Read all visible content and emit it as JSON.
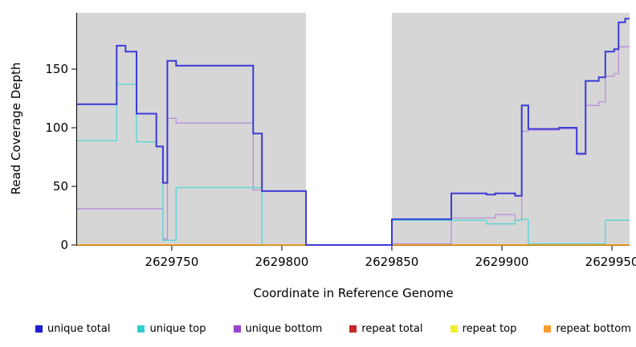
{
  "chart_data": {
    "type": "line",
    "title": "",
    "xlabel": "Coordinate in Reference Genome",
    "ylabel": "Read Coverage Depth",
    "xlim": [
      2629707,
      2629958
    ],
    "ylim": [
      0,
      198
    ],
    "x_ticks": [
      {
        "v": 2629750,
        "label": "2629750"
      },
      {
        "v": 2629800,
        "label": "2629800"
      },
      {
        "v": 2629850,
        "label": "2629850"
      },
      {
        "v": 2629900,
        "label": "2629900"
      },
      {
        "v": 2629950,
        "label": "2629950"
      }
    ],
    "y_ticks": [
      {
        "v": 0,
        "label": "0"
      },
      {
        "v": 50,
        "label": "50"
      },
      {
        "v": 100,
        "label": "100"
      },
      {
        "v": 150,
        "label": "150"
      }
    ],
    "plot_background": "#d6d6d6",
    "gap_region": [
      2629811,
      2629850
    ],
    "series": [
      {
        "name": "repeat total",
        "color": "#cd2626",
        "width": 1.3,
        "points": [
          [
            2629707,
            0
          ]
        ]
      },
      {
        "name": "repeat top",
        "color": "#f2f20c",
        "width": 1.3,
        "points": [
          [
            2629707,
            0
          ]
        ]
      },
      {
        "name": "unique bottom",
        "color": "#bb8fd9",
        "width": 1.3,
        "points": [
          [
            2629707,
            31
          ],
          [
            2629746,
            5
          ],
          [
            2629748,
            108
          ],
          [
            2629752,
            104
          ],
          [
            2629787,
            47
          ],
          [
            2629791,
            46
          ],
          [
            2629811,
            0
          ],
          [
            2629850,
            1
          ],
          [
            2629877,
            23
          ],
          [
            2629897,
            26
          ],
          [
            2629906,
            21
          ],
          [
            2629909,
            97
          ],
          [
            2629912,
            98
          ],
          [
            2629926,
            99
          ],
          [
            2629934,
            77
          ],
          [
            2629938,
            119
          ],
          [
            2629944,
            122
          ],
          [
            2629947,
            144
          ],
          [
            2629951,
            146
          ],
          [
            2629953,
            169
          ]
        ]
      },
      {
        "name": "unique top",
        "color": "#55d6d6",
        "width": 1.3,
        "points": [
          [
            2629707,
            89
          ],
          [
            2629725,
            137
          ],
          [
            2629734,
            88
          ],
          [
            2629743,
            84
          ],
          [
            2629746,
            4
          ],
          [
            2629752,
            49
          ],
          [
            2629791,
            0
          ],
          [
            2629850,
            21
          ],
          [
            2629893,
            18
          ],
          [
            2629906,
            21
          ],
          [
            2629909,
            22
          ],
          [
            2629912,
            1
          ],
          [
            2629947,
            21
          ]
        ]
      },
      {
        "name": "repeat bottom",
        "color": "#ff9900",
        "width": 1.3,
        "points": [
          [
            2629707,
            0
          ]
        ]
      },
      {
        "name": "unique total",
        "color": "#3b3bd6",
        "width": 2,
        "points": [
          [
            2629707,
            120
          ],
          [
            2629725,
            170
          ],
          [
            2629729,
            165
          ],
          [
            2629734,
            112
          ],
          [
            2629743,
            84
          ],
          [
            2629746,
            53
          ],
          [
            2629748,
            157
          ],
          [
            2629752,
            153
          ],
          [
            2629787,
            95
          ],
          [
            2629791,
            46
          ],
          [
            2629811,
            0
          ],
          [
            2629850,
            22
          ],
          [
            2629877,
            44
          ],
          [
            2629893,
            43
          ],
          [
            2629897,
            44
          ],
          [
            2629906,
            42
          ],
          [
            2629909,
            119
          ],
          [
            2629912,
            99
          ],
          [
            2629926,
            100
          ],
          [
            2629934,
            78
          ],
          [
            2629938,
            140
          ],
          [
            2629944,
            143
          ],
          [
            2629947,
            165
          ],
          [
            2629951,
            167
          ],
          [
            2629953,
            190
          ],
          [
            2629956,
            193
          ]
        ]
      }
    ],
    "legend": [
      {
        "label": "unique total",
        "color": "#1f1fd1"
      },
      {
        "label": "unique top",
        "color": "#30cfcf"
      },
      {
        "label": "unique bottom",
        "color": "#9a43cf"
      },
      {
        "label": "repeat total",
        "color": "#c62828"
      },
      {
        "label": "repeat top",
        "color": "#efef30"
      },
      {
        "label": "repeat bottom",
        "color": "#ff9d30"
      }
    ]
  }
}
